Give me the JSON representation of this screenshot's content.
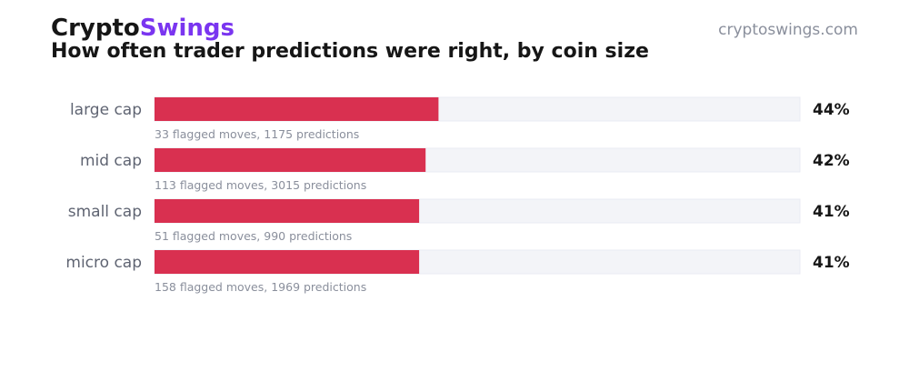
{
  "header": {
    "brand_part1": "Crypto",
    "brand_part2": "Swings",
    "website": "cryptoswings.com",
    "title": "How often trader predictions were right, by coin size"
  },
  "colors": {
    "brand_accent": "#7a35f0",
    "bar_fill": "#d93050",
    "bar_track": "#f3f4f8"
  },
  "chart_data": {
    "type": "bar",
    "orientation": "horizontal",
    "title": "How often trader predictions were right, by coin size",
    "categories": [
      "large cap",
      "mid cap",
      "small cap",
      "micro cap"
    ],
    "values": [
      44,
      42,
      41,
      41
    ],
    "value_labels": [
      "44%",
      "42%",
      "41%",
      "41%"
    ],
    "sublabels": [
      "33 flagged moves, 1175 predictions",
      "113 flagged moves, 3015 predictions",
      "51 flagged moves, 990 predictions",
      "158 flagged moves, 1969 predictions"
    ],
    "xlim": [
      0,
      100
    ],
    "grid": false,
    "legend": false
  }
}
